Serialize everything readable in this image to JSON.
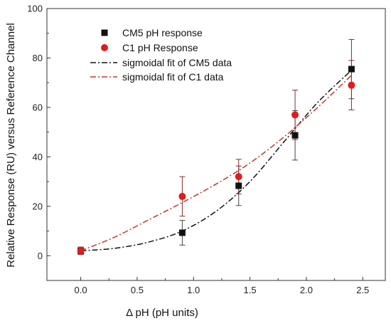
{
  "chart_data": {
    "type": "scatter",
    "xlabel": "Δ pH (pH units)",
    "ylabel": "Relative Response (RU) versus Reference Channel",
    "xlim": [
      -0.3,
      2.7
    ],
    "ylim": [
      -10,
      100
    ],
    "xticks": [
      0.0,
      0.5,
      1.0,
      1.5,
      2.0,
      2.5
    ],
    "xtick_labels": [
      "0.0",
      "0.5",
      "1.0",
      "1.5",
      "2.0",
      "2.5"
    ],
    "yticks": [
      0,
      20,
      40,
      60,
      80,
      100
    ],
    "ytick_labels": [
      "0",
      "20",
      "40",
      "60",
      "80",
      "100"
    ],
    "grid": false,
    "legend_position": "top-left",
    "series": [
      {
        "name": "CM5 pH response",
        "kind": "points",
        "marker": "square",
        "color": "#111111",
        "x": [
          0.0,
          0.9,
          1.4,
          1.9,
          2.4
        ],
        "y": [
          2,
          9.3,
          28.3,
          48.7,
          75.5
        ],
        "err": [
          1.5,
          5.0,
          8.0,
          10.0,
          12.0
        ]
      },
      {
        "name": "C1 pH Response",
        "kind": "points",
        "marker": "circle",
        "color": "#e31a1c",
        "x": [
          0.0,
          0.9,
          1.4,
          1.9,
          2.4
        ],
        "y": [
          2,
          24,
          32,
          57,
          69
        ],
        "err": [
          1.5,
          8.0,
          7.0,
          10.0,
          10.0
        ]
      },
      {
        "name": "sigmoidal fit of CM5 data",
        "kind": "fit",
        "dash": "dashdot",
        "color": "#111111",
        "x": [
          0.0,
          0.3,
          0.6,
          0.9,
          1.2,
          1.5,
          1.8,
          2.1,
          2.4
        ],
        "y": [
          2,
          3,
          5.5,
          10,
          18,
          30,
          46,
          62,
          75
        ]
      },
      {
        "name": "sigmoidal fit of C1 data",
        "kind": "fit",
        "dash": "dashdot",
        "color": "#c0392b",
        "x": [
          0.0,
          0.3,
          0.6,
          0.9,
          1.2,
          1.5,
          1.8,
          2.1,
          2.4
        ],
        "y": [
          2,
          7.5,
          14.5,
          21.5,
          29,
          37.5,
          48,
          60,
          73
        ]
      }
    ]
  }
}
